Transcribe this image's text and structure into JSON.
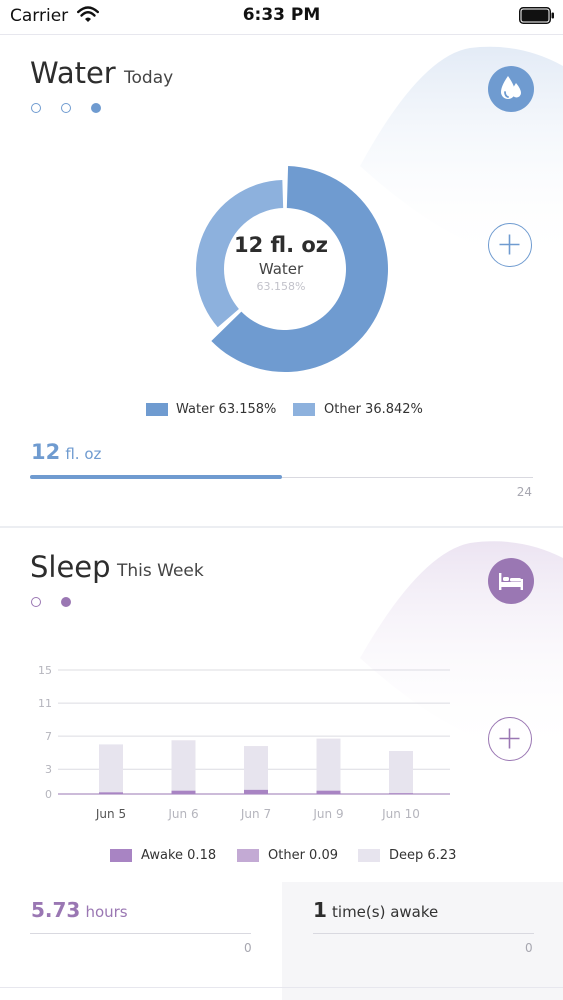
{
  "status_bar": {
    "carrier": "Carrier",
    "time": "6:33 PM"
  },
  "water_card": {
    "title": "Water",
    "period": "Today",
    "accent": "#6f9bd0",
    "accent_light": "#8db1dd",
    "center_value": "12 fl. oz",
    "center_label": "Water",
    "center_percent": "63.158%",
    "legend": [
      {
        "label": "Water 63.158%",
        "color": "#6f9bd0"
      },
      {
        "label": "Other 36.842%",
        "color": "#8db1dd"
      }
    ],
    "donut": [
      {
        "name": "Water",
        "value": 63.158,
        "color": "#6f9bd0"
      },
      {
        "name": "Other",
        "value": 36.842,
        "color": "#8db1dd"
      }
    ],
    "progress": {
      "value": "12",
      "unit": "fl. oz",
      "goal": "24",
      "fraction": 0.5
    },
    "page_dots": {
      "count": 3,
      "active": 2
    },
    "icon": "water-drops-icon"
  },
  "sleep_card": {
    "title": "Sleep",
    "period": "This Week",
    "accent": "#9a77b3",
    "icon": "bed-icon",
    "page_dots": {
      "count": 2,
      "active": 1
    },
    "legend": [
      {
        "label": "Awake 0.18",
        "color": "#a884c3"
      },
      {
        "label": "Other 0.09",
        "color": "#c3aad4"
      },
      {
        "label": "Deep 6.23",
        "color": "#e7e4ee"
      }
    ],
    "stats": {
      "hours_value": "5.73",
      "hours_unit": "hours",
      "hours_goal": "0",
      "awake_value": "1",
      "awake_unit": "time(s) awake",
      "awake_goal": "0"
    }
  },
  "chart_data": {
    "type": "bar",
    "categories": [
      "Jun 5",
      "Jun 6",
      "Jun 7",
      "Jun 9",
      "Jun 10"
    ],
    "ytick_labels": [
      "0",
      "3",
      "7",
      "11",
      "15"
    ],
    "ylim": [
      0,
      15
    ],
    "series": [
      {
        "name": "Deep",
        "values": [
          6.0,
          6.5,
          5.8,
          6.7,
          5.2
        ],
        "color": "#e7e4ee"
      },
      {
        "name": "Awake",
        "values": [
          0.2,
          0.4,
          0.5,
          0.4,
          0.1
        ],
        "color": "#a884c3"
      }
    ],
    "grid": true,
    "legend_position": "bottom"
  }
}
